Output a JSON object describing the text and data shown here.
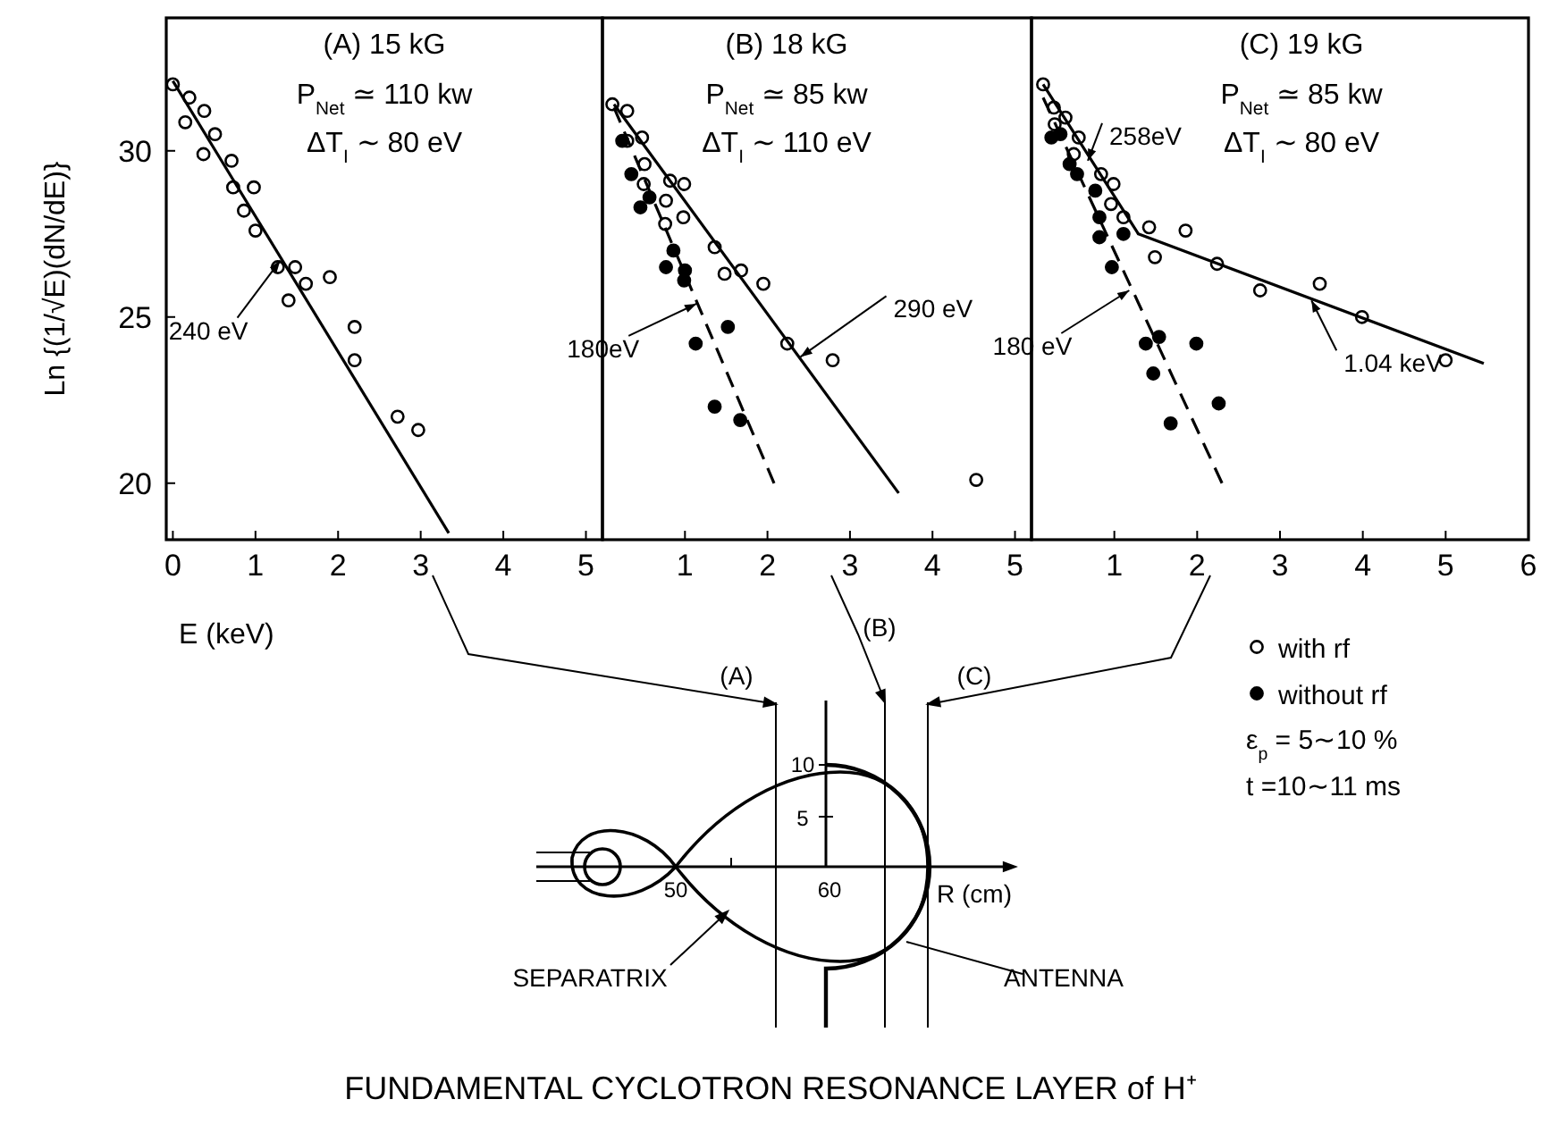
{
  "chart_data": [
    {
      "type": "scatter",
      "title": "(A) 15 kG",
      "xlabel": "E (keV)",
      "ylabel": "Ln {(1/√E)(dN/dE)}",
      "xlim": [
        -0.08,
        5.2
      ],
      "ylim": [
        18.3,
        34
      ],
      "xticks": [
        0,
        1,
        2,
        3,
        4,
        5
      ],
      "yticks": [
        20,
        25,
        30
      ],
      "grid": false,
      "legend": false,
      "annotations": [
        "P$_{Net}$ ≃ 110 kw",
        "ΔT$_{I}$ ∼ 80 eV",
        {
          "text": "240 eV",
          "x": 1.3,
          "y": 26.7
        }
      ],
      "series": [
        {
          "type": "scatter",
          "marker": "circle",
          "color": "#ffffff",
          "x": [
            0.0,
            0.2,
            0.15,
            0.38,
            0.51,
            0.37,
            0.71,
            0.73,
            0.98,
            0.86,
            1.0,
            1.27,
            1.48,
            1.4,
            1.61,
            1.9,
            2.2,
            2.2,
            2.72,
            2.97
          ],
          "values": [
            32.0,
            31.6,
            30.86,
            31.2,
            30.5,
            29.9,
            29.7,
            28.9,
            28.9,
            28.2,
            27.6,
            26.5,
            26.5,
            25.5,
            26.0,
            26.2,
            24.7,
            23.7,
            22.0,
            21.6
          ]
        },
        {
          "type": "line",
          "marker": "none",
          "line_style": "solid",
          "color": "#000000",
          "x": [
            0.0,
            3.34
          ],
          "values": [
            32.1,
            18.5
          ]
        }
      ]
    },
    {
      "type": "scatter",
      "title": "(B) 18 kG",
      "xlim": [
        0,
        5.2
      ],
      "ylim": [
        18.3,
        34
      ],
      "xticks": [
        1,
        2,
        3,
        4,
        5
      ],
      "tick_labels": "x",
      "grid": false,
      "legend": false,
      "annotations": [
        "P$_{Net}$ ≃ 85 kw",
        "ΔT$_{I}$ ∼ 110 eV",
        {
          "text": "290 eV",
          "x": 2.4,
          "y": 23.8
        },
        {
          "text": "180eV",
          "x": 1.14,
          "y": 25.4
        }
      ],
      "series": [
        {
          "type": "scatter",
          "marker": "circle",
          "color": "#ffffff",
          "x": [
            0.12,
            0.3,
            0.3,
            0.48,
            0.51,
            0.5,
            0.82,
            0.99,
            0.77,
            0.98,
            0.76,
            1.36,
            1.48,
            1.68,
            1.95,
            2.24,
            2.79,
            4.53
          ],
          "values": [
            31.4,
            31.2,
            30.3,
            30.4,
            29.6,
            29.0,
            29.1,
            29.0,
            28.5,
            28.0,
            27.8,
            27.1,
            26.3,
            26.4,
            26.0,
            24.2,
            23.7,
            20.1
          ]
        },
        {
          "type": "scatter",
          "marker": "circle",
          "color": "#000000",
          "x": [
            0.24,
            0.35,
            0.46,
            0.57,
            0.86,
            0.77,
            1.0,
            0.99,
            1.52,
            1.13,
            1.36,
            1.67
          ],
          "values": [
            30.3,
            29.3,
            28.3,
            28.6,
            27.0,
            26.5,
            26.4,
            26.1,
            24.7,
            24.2,
            22.3,
            21.9
          ]
        },
        {
          "type": "line",
          "marker": "none",
          "line_style": "solid",
          "color": "#000000",
          "x": [
            0.14,
            3.59
          ],
          "values": [
            31.4,
            19.7
          ]
        },
        {
          "type": "line",
          "marker": "none",
          "line_style": "dashed",
          "color": "#000000",
          "x": [
            0.14,
            2.08
          ],
          "values": [
            31.3,
            20.0
          ]
        }
      ]
    },
    {
      "type": "scatter",
      "title": "(C) 19 kG",
      "xlim": [
        0,
        6
      ],
      "ylim": [
        18.3,
        34
      ],
      "xticks": [
        1,
        2,
        3,
        4,
        5,
        6
      ],
      "tick_labels": "x",
      "grid": false,
      "legend": "bottom right",
      "annotations": [
        "P$_{Net}$ ≃ 85 kw",
        "ΔT$_{I}$ ∼ 80 eV",
        "ε$_{p}$ = 5∼10 %",
        "t =10∼11 ms",
        {
          "text": "258eV",
          "x": 0.68,
          "y": 29.7
        },
        {
          "text": "180 eV",
          "x": 1.18,
          "y": 25.8
        },
        {
          "text": "1.04 keV",
          "x": 3.38,
          "y": 25.5
        }
      ],
      "series": [
        {
          "name": "with rf",
          "type": "scatter",
          "marker": "circle",
          "color": "#ffffff",
          "x": [
            0.14,
            0.27,
            0.28,
            0.41,
            0.57,
            0.51,
            0.84,
            0.99,
            0.96,
            1.11,
            1.42,
            1.86,
            1.49,
            2.24,
            2.76,
            3.48,
            3.99,
            5.0
          ],
          "values": [
            32.0,
            31.3,
            30.8,
            31.0,
            30.4,
            29.9,
            29.3,
            29.0,
            28.4,
            28.0,
            27.7,
            27.6,
            26.8,
            26.6,
            25.8,
            26.0,
            25.0,
            23.7
          ]
        },
        {
          "name": "without rf",
          "type": "scatter",
          "marker": "circle",
          "color": "#000000",
          "x": [
            0.24,
            0.35,
            0.46,
            0.55,
            0.77,
            0.82,
            0.82,
            1.11,
            0.97,
            1.38,
            1.54,
            1.47,
            1.99,
            1.68,
            2.26
          ],
          "values": [
            30.4,
            30.5,
            29.6,
            29.3,
            28.8,
            28.0,
            27.4,
            27.5,
            26.5,
            24.2,
            24.4,
            23.3,
            24.2,
            21.8,
            22.4
          ]
        },
        {
          "type": "line",
          "marker": "none",
          "line_style": "solid",
          "color": "#000000",
          "x": [
            0.14,
            1.29,
            5.46
          ],
          "values": [
            32.0,
            27.5,
            23.6
          ]
        },
        {
          "type": "line",
          "marker": "none",
          "line_style": "dashed",
          "color": "#000000",
          "x": [
            0.14,
            2.3
          ],
          "values": [
            31.6,
            20.0
          ]
        }
      ]
    },
    {
      "type": "other",
      "title": "FUNDAMENTAL CYCLOTRON RESONANCE LAYER of H⁺",
      "annotations": [
        "(A)",
        "(B)",
        "(C)",
        "10",
        "5",
        "50",
        "60",
        "R (cm)",
        "SEPARATRIX",
        "ANTENNA"
      ]
    }
  ]
}
